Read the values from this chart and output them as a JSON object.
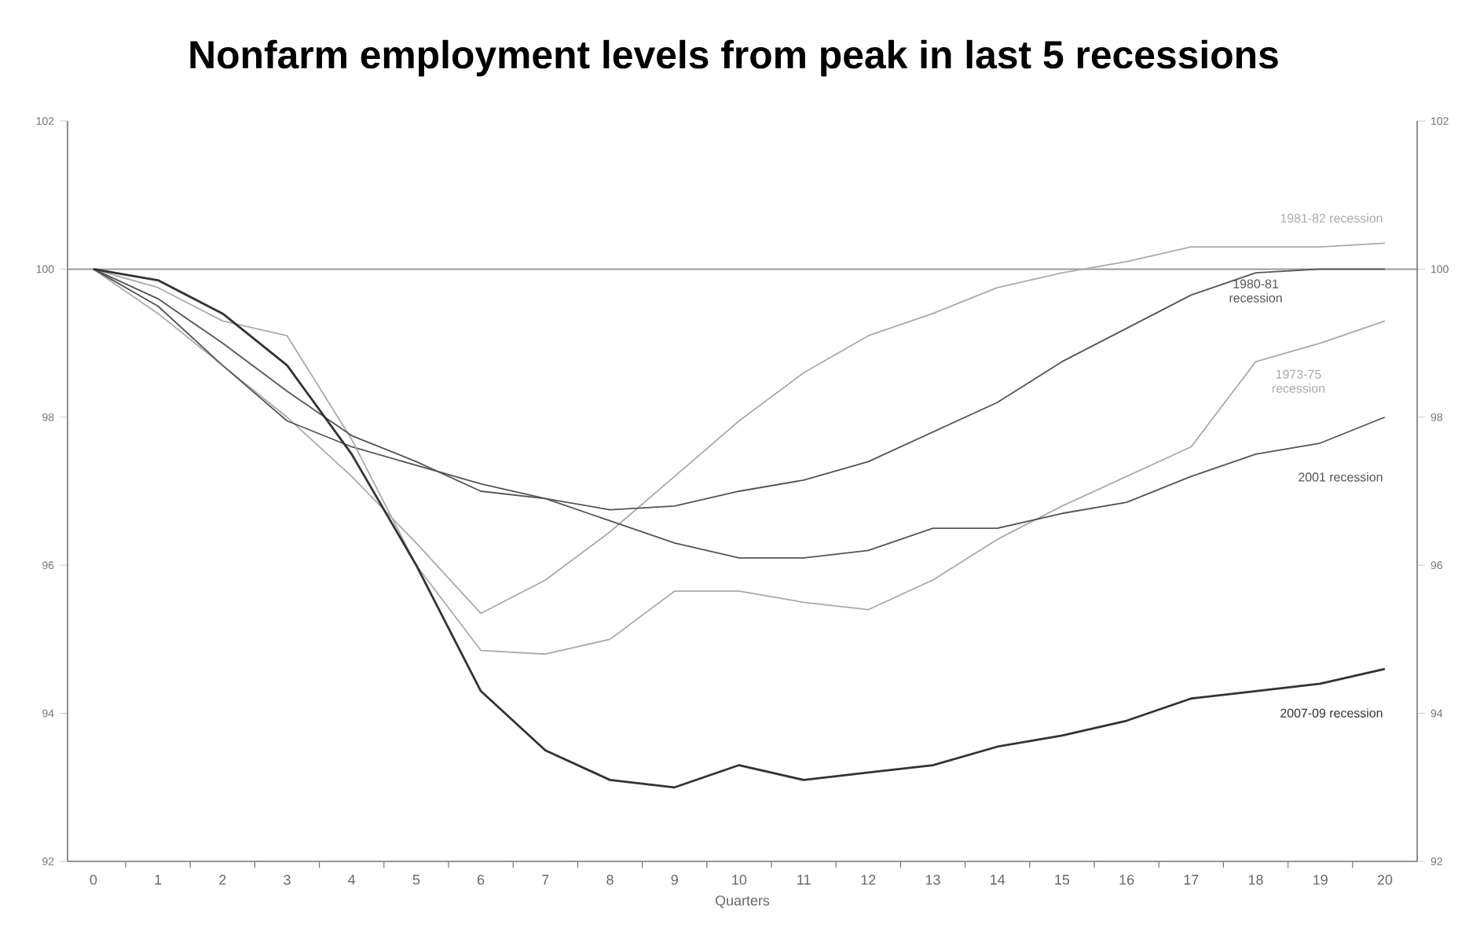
{
  "chart_data": {
    "type": "line",
    "title": "Nonfarm employment levels from peak in last 5 recessions",
    "xlabel": "Quarters",
    "x": [
      0,
      1,
      2,
      3,
      4,
      5,
      6,
      7,
      8,
      9,
      10,
      11,
      12,
      13,
      14,
      15,
      16,
      17,
      18,
      19,
      20
    ],
    "xlim": [
      -0.4,
      20.5
    ],
    "xticks": [
      0,
      {
        "value": 0.5,
        "label": null
      },
      1,
      {
        "value": 1.5,
        "label": null
      },
      2,
      {
        "value": 2.5,
        "label": null
      },
      3,
      {
        "value": 3.5,
        "label": null
      },
      4,
      {
        "value": 4.5,
        "label": null
      },
      5,
      {
        "value": 5.5,
        "label": null
      },
      6,
      {
        "value": 6.5,
        "label": null
      },
      7,
      {
        "value": 7.5,
        "label": null
      },
      8,
      {
        "value": 8.5,
        "label": null
      },
      9,
      {
        "value": 9.5,
        "label": null
      },
      10,
      {
        "value": 10.5,
        "label": null
      },
      11,
      {
        "value": 11.5,
        "label": null
      },
      12,
      {
        "value": 12.5,
        "label": null
      },
      13,
      {
        "value": 13.5,
        "label": null
      },
      14,
      {
        "value": 14.5,
        "label": null
      },
      15,
      {
        "value": 15.5,
        "label": null
      },
      16,
      {
        "value": 16.5,
        "label": null
      },
      17,
      {
        "value": 17.5,
        "label": null
      },
      18,
      {
        "value": 18.5,
        "label": null
      },
      19,
      {
        "value": 19.5,
        "label": null
      },
      20
    ],
    "ylim": [
      92,
      102
    ],
    "yticks": [
      92,
      94,
      96,
      98,
      100,
      102
    ],
    "y2lim": [
      92,
      102
    ],
    "y2ticks": [
      92,
      94,
      96,
      98,
      100,
      102
    ],
    "grid": false,
    "legend": false,
    "marker": "none",
    "line_style": "solid",
    "ref_lines": [
      {
        "axis": "y",
        "value": 100,
        "color": "#999999"
      }
    ],
    "series": [
      {
        "name": "1981-82 recession",
        "color": "#aaaaaa",
        "values": [
          100,
          99.4,
          98.7,
          98.0,
          97.2,
          96.3,
          95.35,
          95.8,
          96.45,
          97.2,
          97.95,
          98.6,
          99.1,
          99.4,
          99.75,
          99.95,
          100.1,
          100.3,
          100.3,
          100.3,
          100.35
        ]
      },
      {
        "name": "1980-81 recession",
        "color": "#555555",
        "values": [
          100,
          99.5,
          98.7,
          97.95,
          97.6,
          97.35,
          97.1,
          96.9,
          96.75,
          96.8,
          97.0,
          97.15,
          97.4,
          97.8,
          98.2,
          98.75,
          99.2,
          99.65,
          99.95,
          100.0,
          100.0
        ]
      },
      {
        "name": "1973-75 recession",
        "color": "#aaaaaa",
        "values": [
          100,
          99.75,
          99.3,
          99.1,
          97.7,
          96.0,
          94.85,
          94.8,
          95.0,
          95.65,
          95.65,
          95.5,
          95.4,
          95.8,
          96.35,
          96.8,
          97.2,
          97.6,
          98.75,
          99.0,
          99.3
        ]
      },
      {
        "name": "2001 recession",
        "color": "#555555",
        "values": [
          100,
          99.6,
          99.0,
          98.35,
          97.75,
          97.4,
          97.0,
          96.9,
          96.6,
          96.3,
          96.1,
          96.1,
          96.2,
          96.5,
          96.5,
          96.7,
          96.85,
          97.2,
          97.5,
          97.65,
          98.0
        ]
      },
      {
        "name": "2007-09 recession",
        "color": "#333333",
        "values": [
          100,
          99.85,
          99.4,
          98.7,
          97.5,
          96.0,
          94.3,
          93.5,
          93.1,
          93.0,
          93.3,
          93.1,
          93.2,
          93.3,
          93.55,
          93.7,
          93.9,
          94.2,
          94.3,
          94.4,
          94.6
        ]
      }
    ]
  }
}
